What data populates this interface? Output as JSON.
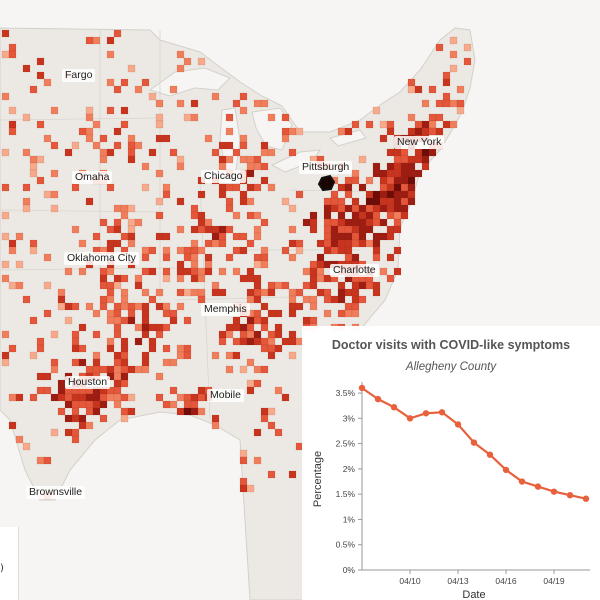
{
  "map": {
    "cities": [
      {
        "name": "Fargo"
      },
      {
        "name": "Omaha"
      },
      {
        "name": "Chicago"
      },
      {
        "name": "Pittsburgh"
      },
      {
        "name": "New York"
      },
      {
        "name": "Oklahoma City"
      },
      {
        "name": "Charlotte"
      },
      {
        "name": "Memphis"
      },
      {
        "name": "Houston"
      },
      {
        "name": "Mobile"
      },
      {
        "name": "Brownsville"
      }
    ],
    "colors": {
      "land": "#ece9e4",
      "water": "#f6f5f3",
      "border": "#d4d0ca",
      "scale": [
        "#f7a98b",
        "#f07e5c",
        "#e4573a",
        "#c8351f",
        "#9e1d12",
        "#6e0c08"
      ],
      "highlight_outline": "#111111"
    },
    "highlighted_county": "Allegheny County"
  },
  "legend": {
    "partial_text": ")"
  },
  "chart_data": {
    "type": "line",
    "title": "Doctor visits with COVID-like symptoms",
    "subtitle": "Allegheny County",
    "xlabel": "Date",
    "ylabel": "Percentage",
    "x": [
      "04/07",
      "04/08",
      "04/09",
      "04/10",
      "04/11",
      "04/12",
      "04/13",
      "04/14",
      "04/15",
      "04/16",
      "04/17",
      "04/18",
      "04/19",
      "04/20",
      "04/21"
    ],
    "values": [
      3.6,
      3.38,
      3.22,
      3.0,
      3.1,
      3.12,
      2.88,
      2.52,
      2.28,
      1.98,
      1.75,
      1.65,
      1.55,
      1.48,
      1.41
    ],
    "x_tick_labels": [
      "04/10",
      "04/13",
      "04/16",
      "04/19"
    ],
    "y_tick_labels": [
      "0%",
      "0.5%",
      "1%",
      "1.5%",
      "2%",
      "2.5%",
      "3%",
      "3.5%"
    ],
    "ylim": [
      0,
      3.6
    ],
    "grid": false,
    "color": "#e8603c"
  }
}
